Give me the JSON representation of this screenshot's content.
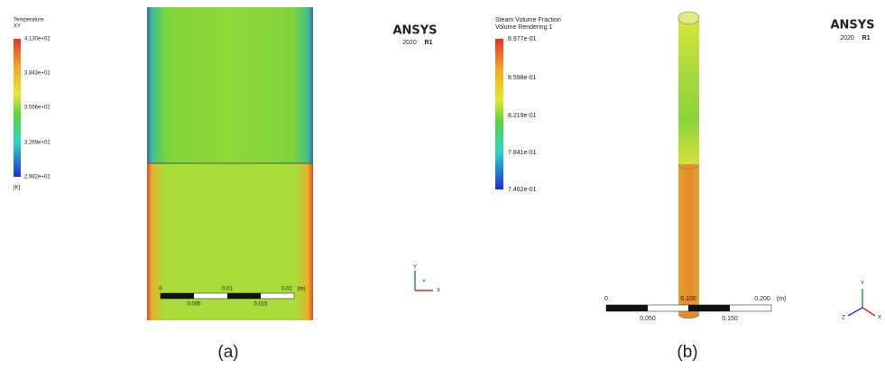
{
  "panels": [
    {
      "legend": {
        "title": "Temperature",
        "subtitle": "XY",
        "labels": [
          "4.130e+02",
          "3.843e+02",
          "3.556e+02",
          "3.269e+02",
          "2.982e+02"
        ],
        "unit": "[K]"
      },
      "logo": {
        "brand": "ANSYS",
        "version": "2020",
        "release": "R1"
      },
      "scale": {
        "top": [
          "0",
          "0.01",
          "0.02",
          "(m)"
        ],
        "bottom": [
          "0.005",
          "0.015"
        ]
      },
      "triad": [
        "Y",
        "X"
      ],
      "caption": "(a)"
    },
    {
      "legend": {
        "title": "Steam Volume Fraction",
        "subtitle": "Volume Rendering 1",
        "labels": [
          "8.977e-01",
          "8.598e-01",
          "8.219e-01",
          "7.841e-01",
          "7.462e-01"
        ]
      },
      "logo": {
        "brand": "ANSYS",
        "version": "2020",
        "release": "R1"
      },
      "scale": {
        "top": [
          "0",
          "0.100",
          "0.200",
          "(m)"
        ],
        "bottom": [
          "0.050",
          "0.150"
        ]
      },
      "triad": [
        "Y",
        "Z",
        "X"
      ],
      "caption": "(b)"
    }
  ]
}
